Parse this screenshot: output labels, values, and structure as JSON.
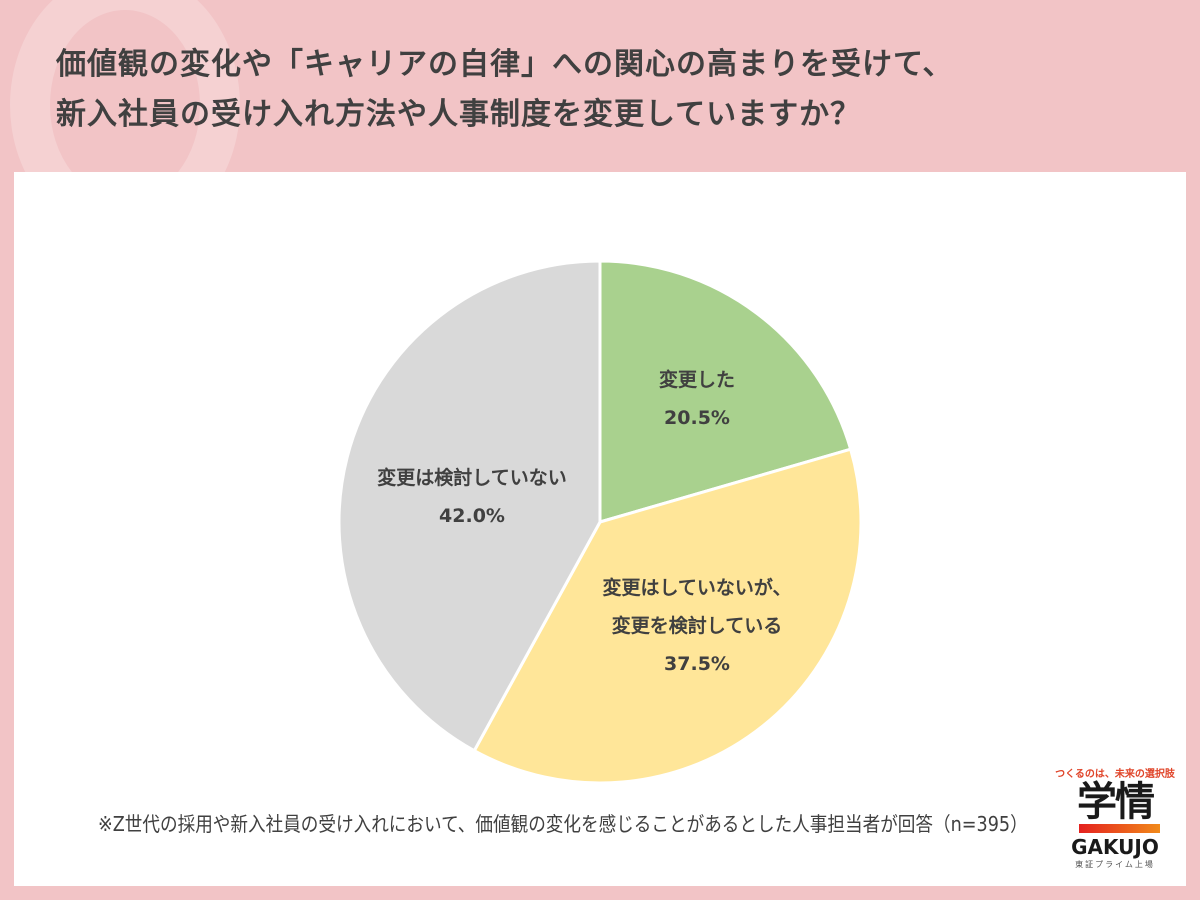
{
  "title": {
    "line1": "価値観の変化や「キャリアの自律」への関心の高まりを受けて、",
    "line2": "新入社員の受け入れ方法や人事制度を変更していますか？"
  },
  "footnote": "※Z世代の採用や新入社員の受け入れにおいて、価値観の変化を感じることがあるとした人事担当者が回答（n=395）",
  "logo": {
    "tagline": "つくるのは、未来の選択肢",
    "name_kanji": "学情",
    "name_latin": "GAKUJO",
    "subtitle": "東証プライム上場"
  },
  "chart_data": {
    "type": "pie",
    "start": "top",
    "direction": "clockwise",
    "slices": [
      {
        "label_lines": [
          "変更した"
        ],
        "value": 20.5,
        "value_label": "20.5%",
        "color": "#a9d18e"
      },
      {
        "label_lines": [
          "変更はしていないが、",
          "変更を検討している"
        ],
        "value": 37.5,
        "value_label": "37.5%",
        "color": "#ffe699"
      },
      {
        "label_lines": [
          "変更は検討していない"
        ],
        "value": 42.0,
        "value_label": "42.0%",
        "color": "#d9d9d9"
      }
    ]
  }
}
